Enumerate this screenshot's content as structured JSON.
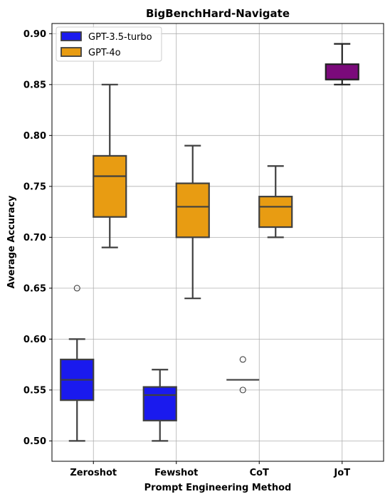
{
  "chart_data": {
    "type": "box",
    "title": "BigBenchHard-Navigate",
    "xlabel": "Prompt Engineering Method",
    "ylabel": "Average Accuracy",
    "categories": [
      "Zeroshot",
      "Fewshot",
      "CoT",
      "JoT"
    ],
    "ylim": [
      0.48,
      0.91
    ],
    "yticks": [
      "0.50",
      "0.55",
      "0.60",
      "0.65",
      "0.70",
      "0.75",
      "0.80",
      "0.85",
      "0.90"
    ],
    "grid": true,
    "legend_position": "top-left",
    "series": [
      {
        "name": "GPT-3.5-turbo",
        "color": "#1a1aee",
        "boxes": [
          {
            "category": "Zeroshot",
            "whisker_low": 0.5,
            "q1": 0.54,
            "median": 0.56,
            "q3": 0.58,
            "whisker_high": 0.6,
            "outliers": [
              0.65
            ]
          },
          {
            "category": "Fewshot",
            "whisker_low": 0.5,
            "q1": 0.52,
            "median": 0.545,
            "q3": 0.553,
            "whisker_high": 0.57,
            "outliers": []
          },
          {
            "category": "CoT",
            "whisker_low": 0.56,
            "q1": 0.56,
            "median": 0.56,
            "q3": 0.56,
            "whisker_high": 0.56,
            "outliers": [
              0.58,
              0.55
            ]
          }
        ]
      },
      {
        "name": "GPT-4o",
        "color": "#e89c12",
        "boxes": [
          {
            "category": "Zeroshot",
            "whisker_low": 0.69,
            "q1": 0.72,
            "median": 0.76,
            "q3": 0.78,
            "whisker_high": 0.85,
            "outliers": []
          },
          {
            "category": "Fewshot",
            "whisker_low": 0.64,
            "q1": 0.7,
            "median": 0.73,
            "q3": 0.753,
            "whisker_high": 0.79,
            "outliers": []
          },
          {
            "category": "CoT",
            "whisker_low": 0.7,
            "q1": 0.71,
            "median": 0.73,
            "q3": 0.74,
            "whisker_high": 0.77,
            "outliers": []
          }
        ]
      },
      {
        "name": "",
        "color": "#7b0a7b",
        "in_legend": false,
        "boxes": [
          {
            "category": "JoT",
            "whisker_low": 0.85,
            "q1": 0.855,
            "median": 0.855,
            "q3": 0.87,
            "whisker_high": 0.89,
            "outliers": []
          }
        ]
      }
    ]
  }
}
